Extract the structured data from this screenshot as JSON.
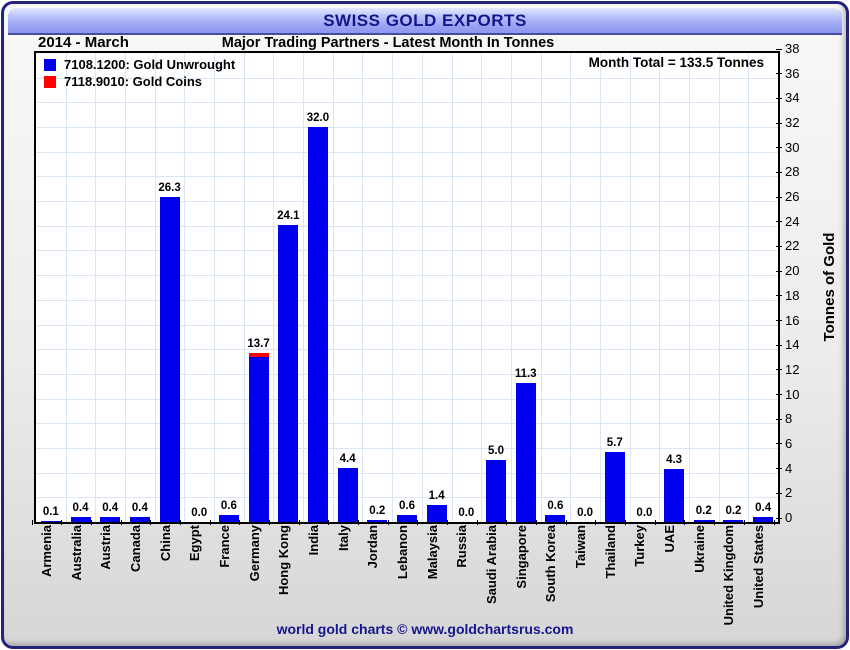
{
  "window": {
    "title": "SWISS GOLD EXPORTS",
    "period": "2014 - March",
    "subtitle": "Major Trading Partners - Latest Month In Tonnes",
    "footer": "world gold charts © www.goldchartsrus.com"
  },
  "annotation": {
    "month_total": "Month Total = 133.5 Tonnes"
  },
  "legend": {
    "items": [
      {
        "label": "7108.1200: Gold Unwrought",
        "color": "#0000ee"
      },
      {
        "label": "7118.9010: Gold Coins",
        "color": "#ff0000"
      }
    ]
  },
  "colors": {
    "bar_unwrought": "#0000ee",
    "bar_coins": "#ff0000",
    "gridline": "#d9e6f4",
    "header_accent": "#8b96ee",
    "title_navy": "#16168c"
  },
  "chart_data": {
    "type": "bar",
    "stacked": true,
    "title": "SWISS GOLD EXPORTS",
    "subtitle": "Major Trading Partners - Latest Month In Tonnes",
    "period": "2014 - March",
    "month_total_tonnes": 133.5,
    "categories": [
      "Armenia",
      "Australia",
      "Austria",
      "Canada",
      "China",
      "Egypt",
      "France",
      "Germany",
      "Hong Kong",
      "India",
      "Italy",
      "Jordan",
      "Lebanon",
      "Malaysia",
      "Russia",
      "Saudi Arabia",
      "Singapore",
      "South Korea",
      "Taiwan",
      "Thailand",
      "Turkey",
      "UAE",
      "Ukraine",
      "United Kingdom",
      "United States"
    ],
    "series": [
      {
        "name": "7108.1200: Gold Unwrought",
        "color": "#0000ee",
        "values": [
          0.1,
          0.4,
          0.4,
          0.4,
          26.3,
          0.0,
          0.6,
          13.4,
          24.1,
          32.0,
          4.4,
          0.2,
          0.6,
          1.4,
          0.0,
          5.0,
          11.3,
          0.6,
          0.0,
          5.7,
          0.0,
          4.3,
          0.2,
          0.2,
          0.4
        ]
      },
      {
        "name": "7118.9010: Gold Coins",
        "color": "#ff0000",
        "values": [
          0,
          0,
          0,
          0,
          0,
          0,
          0,
          0.3,
          0,
          0,
          0,
          0,
          0,
          0,
          0,
          0,
          0,
          0,
          0,
          0,
          0,
          0,
          0,
          0,
          0
        ]
      }
    ],
    "bar_labels": [
      "0.1",
      "0.4",
      "0.4",
      "0.4",
      "26.3",
      "0.0",
      "0.6",
      "13.7",
      "24.1",
      "32.0",
      "4.4",
      "0.2",
      "0.6",
      "1.4",
      "0.0",
      "5.0",
      "11.3",
      "0.6",
      "0.0",
      "5.7",
      "0.0",
      "4.3",
      "0.2",
      "0.2",
      "0.4"
    ],
    "xlabel": "",
    "ylabel": "Tonnes of Gold",
    "ylim": [
      0,
      38
    ],
    "ytick_step": 2,
    "grid": true,
    "legend_position": "top-left"
  }
}
